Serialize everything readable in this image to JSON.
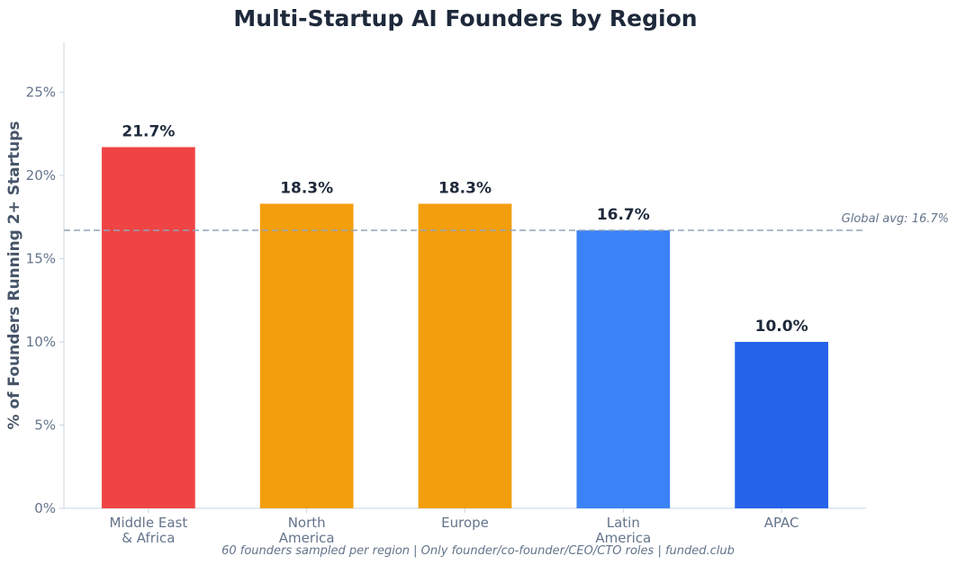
{
  "chart_data": {
    "type": "bar",
    "title": "Multi-Startup AI Founders by Region",
    "ylabel": "% of Founders Running 2+ Startups",
    "xlabel": "",
    "categories": [
      [
        "Middle East",
        "& Africa"
      ],
      [
        "North",
        "America"
      ],
      [
        "Europe"
      ],
      [
        "Latin",
        "America"
      ],
      [
        "APAC"
      ]
    ],
    "values": [
      21.7,
      18.3,
      18.3,
      16.7,
      10.0
    ],
    "data_labels": [
      "21.7%",
      "18.3%",
      "18.3%",
      "16.7%",
      "10.0%"
    ],
    "colors": [
      "#ef4444",
      "#f39e0c",
      "#f39e0c",
      "#3b82f6",
      "#2563eb"
    ],
    "ylim": [
      0,
      28
    ],
    "yticks": [
      0,
      5,
      10,
      15,
      20,
      25
    ],
    "ytick_labels": [
      "0%",
      "5%",
      "10%",
      "15%",
      "20%",
      "25%"
    ],
    "reference_line": {
      "value": 16.7,
      "label": "Global avg: 16.7%",
      "color": "#94a3b8",
      "style": "dashed"
    },
    "grid": false,
    "footnote": "60 founders sampled per region | Only founder/co-founder/CEO/CTO roles | funded.club"
  }
}
